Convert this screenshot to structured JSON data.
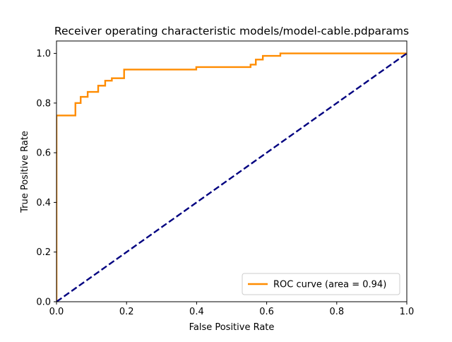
{
  "chart_data": {
    "type": "line",
    "title": "Receiver operating characteristic models/model-cable.pdparams",
    "xlabel": "False Positive Rate",
    "ylabel": "True Positive Rate",
    "xlim": [
      0.0,
      1.0
    ],
    "ylim": [
      0.0,
      1.05
    ],
    "xticks": [
      0.0,
      0.2,
      0.4,
      0.6,
      0.8,
      1.0
    ],
    "yticks": [
      0.0,
      0.2,
      0.4,
      0.6,
      0.8,
      1.0
    ],
    "xtick_labels": [
      "0.0",
      "0.2",
      "0.4",
      "0.6",
      "0.8",
      "1.0"
    ],
    "ytick_labels": [
      "0.0",
      "0.2",
      "0.4",
      "0.6",
      "0.8",
      "1.0"
    ],
    "grid": false,
    "legend_position": "lower right",
    "series": [
      {
        "name": "ROC curve (area = 0.94)",
        "color": "#ff8c00",
        "style": "solid",
        "x": [
          0.0,
          0.0,
          0.054,
          0.054,
          0.069,
          0.069,
          0.089,
          0.089,
          0.119,
          0.119,
          0.139,
          0.139,
          0.158,
          0.158,
          0.193,
          0.193,
          0.399,
          0.399,
          0.554,
          0.554,
          0.569,
          0.569,
          0.589,
          0.589,
          0.639,
          0.639,
          1.0
        ],
        "y": [
          0.0,
          0.75,
          0.75,
          0.8,
          0.8,
          0.825,
          0.825,
          0.845,
          0.845,
          0.87,
          0.87,
          0.89,
          0.89,
          0.9,
          0.9,
          0.935,
          0.935,
          0.945,
          0.945,
          0.955,
          0.955,
          0.975,
          0.975,
          0.99,
          0.99,
          1.0,
          1.0
        ]
      },
      {
        "color": "#000080",
        "style": "dashed",
        "x": [
          0.0,
          1.0
        ],
        "y": [
          0.0,
          1.0
        ]
      }
    ]
  }
}
